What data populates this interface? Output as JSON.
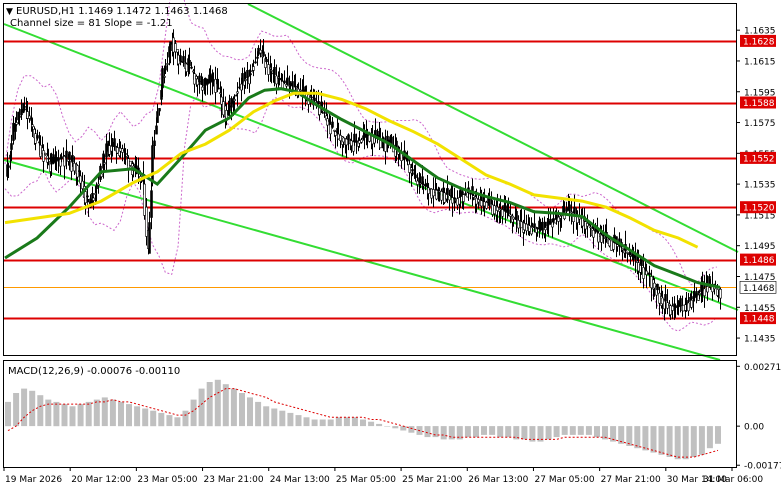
{
  "header": {
    "symbol_line": "EURUSD,H1  1.1469 1.1472 1.1463 1.1468",
    "channel_info": "Channel size = 81 Slope = -1.21"
  },
  "colors": {
    "bull_body": "#000000",
    "bear_body": "#ffffff",
    "candle_line": "#000000",
    "ma_fast": "#1a7a1a",
    "ma_slow": "#f2e200",
    "channel": "#33dd33",
    "level_line": "#dd0000",
    "level_label_bg": "#dd0000",
    "level_label_text": "#ffffff",
    "bollinger": "#cc66cc",
    "current_price_line": "#ff9900",
    "current_label_bg": "#ffffff",
    "macd_hist": "#c0c0c0",
    "macd_signal": "#dd0000",
    "grid_border": "#000000"
  },
  "chart_data": [
    {
      "type": "candlestick",
      "title": "EURUSD,H1",
      "ylim": [
        1.1424,
        1.1652
      ],
      "y_ticks": [
        "1.1635",
        "1.1615",
        "1.1595",
        "1.1575",
        "1.1555",
        "1.1535",
        "1.1515",
        "1.1495",
        "1.1475",
        "1.1455",
        "1.1435"
      ],
      "y_tick_values": [
        1.1635,
        1.1615,
        1.1595,
        1.1575,
        1.1555,
        1.1535,
        1.1515,
        1.1495,
        1.1475,
        1.1455,
        1.1435
      ],
      "x_labels": [
        "19 Mar 2026",
        "20 Mar 12:00",
        "23 Mar 05:00",
        "23 Mar 21:00",
        "24 Mar 13:00",
        "25 Mar 05:00",
        "25 Mar 21:00",
        "26 Mar 13:00",
        "27 Mar 05:00",
        "27 Mar 21:00",
        "30 Mar 14:00",
        "31 Mar 06:00"
      ],
      "levels": [
        {
          "label": "1.1628",
          "value": 1.1628
        },
        {
          "label": "1.1588",
          "value": 1.1588
        },
        {
          "label": "1.1552",
          "value": 1.1552
        },
        {
          "label": "1.1520",
          "value": 1.152
        },
        {
          "label": "1.1486",
          "value": 1.1486
        },
        {
          "label": "1.1448",
          "value": 1.1448
        }
      ],
      "current_price": {
        "label": "1.1468",
        "value": 1.1468
      },
      "close_path": [
        [
          0,
          1.154
        ],
        [
          6,
          1.1575
        ],
        [
          12,
          1.1585
        ],
        [
          20,
          1.1562
        ],
        [
          28,
          1.1548
        ],
        [
          36,
          1.1553
        ],
        [
          44,
          1.1547
        ],
        [
          52,
          1.152
        ],
        [
          58,
          1.1538
        ],
        [
          64,
          1.156
        ],
        [
          72,
          1.1558
        ],
        [
          80,
          1.1545
        ],
        [
          86,
          1.1535
        ],
        [
          89,
          1.149
        ],
        [
          92,
          1.156
        ],
        [
          98,
          1.1605
        ],
        [
          104,
          1.163
        ],
        [
          108,
          1.1615
        ],
        [
          114,
          1.1612
        ],
        [
          122,
          1.1598
        ],
        [
          130,
          1.1603
        ],
        [
          138,
          1.158
        ],
        [
          146,
          1.16
        ],
        [
          152,
          1.1606
        ],
        [
          158,
          1.1622
        ],
        [
          166,
          1.1607
        ],
        [
          174,
          1.16
        ],
        [
          180,
          1.1598
        ],
        [
          188,
          1.1593
        ],
        [
          196,
          1.1585
        ],
        [
          204,
          1.157
        ],
        [
          210,
          1.1565
        ],
        [
          218,
          1.1562
        ],
        [
          226,
          1.1567
        ],
        [
          234,
          1.1563
        ],
        [
          242,
          1.156
        ],
        [
          250,
          1.155
        ],
        [
          256,
          1.1537
        ],
        [
          264,
          1.1532
        ],
        [
          272,
          1.153
        ],
        [
          280,
          1.1525
        ],
        [
          288,
          1.153
        ],
        [
          294,
          1.1525
        ],
        [
          302,
          1.1522
        ],
        [
          310,
          1.1518
        ],
        [
          318,
          1.1512
        ],
        [
          326,
          1.1508
        ],
        [
          334,
          1.1505
        ],
        [
          342,
          1.1512
        ],
        [
          350,
          1.1518
        ],
        [
          358,
          1.1514
        ],
        [
          366,
          1.1505
        ],
        [
          374,
          1.15
        ],
        [
          382,
          1.1495
        ],
        [
          390,
          1.1488
        ],
        [
          396,
          1.1482
        ],
        [
          402,
          1.1475
        ],
        [
          408,
          1.1462
        ],
        [
          414,
          1.1456
        ],
        [
          418,
          1.1455
        ],
        [
          424,
          1.1457
        ],
        [
          430,
          1.1462
        ],
        [
          436,
          1.1468
        ],
        [
          440,
          1.147
        ],
        [
          446,
          1.1466
        ]
      ],
      "series": [
        {
          "name": "MA fast",
          "points": [
            [
              0,
              1.1487
            ],
            [
              20,
              1.15
            ],
            [
              40,
              1.152
            ],
            [
              60,
              1.1543
            ],
            [
              80,
              1.1545
            ],
            [
              95,
              1.1535
            ],
            [
              110,
              1.1552
            ],
            [
              125,
              1.157
            ],
            [
              140,
              1.1578
            ],
            [
              152,
              1.1591
            ],
            [
              162,
              1.1596
            ],
            [
              172,
              1.1597
            ],
            [
              182,
              1.1595
            ],
            [
              195,
              1.1586
            ],
            [
              210,
              1.1577
            ],
            [
              225,
              1.1569
            ],
            [
              240,
              1.1561
            ],
            [
              255,
              1.155
            ],
            [
              270,
              1.1539
            ],
            [
              285,
              1.1532
            ],
            [
              300,
              1.1527
            ],
            [
              315,
              1.1523
            ],
            [
              330,
              1.1517
            ],
            [
              345,
              1.1516
            ],
            [
              360,
              1.1514
            ],
            [
              375,
              1.1502
            ],
            [
              390,
              1.1492
            ],
            [
              405,
              1.1482
            ],
            [
              420,
              1.1476
            ],
            [
              432,
              1.1471
            ],
            [
              446,
              1.1468
            ]
          ]
        },
        {
          "name": "MA slow",
          "points": [
            [
              0,
              1.151
            ],
            [
              20,
              1.1513
            ],
            [
              40,
              1.1516
            ],
            [
              60,
              1.1524
            ],
            [
              80,
              1.1536
            ],
            [
              95,
              1.1543
            ],
            [
              110,
              1.1555
            ],
            [
              125,
              1.1561
            ],
            [
              140,
              1.157
            ],
            [
              155,
              1.1582
            ],
            [
              168,
              1.1589
            ],
            [
              180,
              1.1594
            ],
            [
              195,
              1.1594
            ],
            [
              210,
              1.159
            ],
            [
              225,
              1.1584
            ],
            [
              240,
              1.1576
            ],
            [
              255,
              1.1569
            ],
            [
              270,
              1.1561
            ],
            [
              285,
              1.1551
            ],
            [
              300,
              1.1541
            ],
            [
              315,
              1.1535
            ],
            [
              330,
              1.1528
            ],
            [
              345,
              1.1526
            ],
            [
              360,
              1.1524
            ],
            [
              375,
              1.152
            ],
            [
              390,
              1.1513
            ],
            [
              405,
              1.1505
            ],
            [
              420,
              1.15
            ],
            [
              432,
              1.1494
            ]
          ]
        }
      ]
    },
    {
      "type": "bar",
      "title": "MACD(12,26,9) -0.00076 -0.00110",
      "ylim": [
        -0.00185,
        0.00295
      ],
      "y_ticks": [
        "0.00271",
        "0.00",
        "-0.00177"
      ],
      "y_tick_values": [
        0.00271,
        0.0,
        -0.00177
      ],
      "series": [
        {
          "name": "MACD",
          "values": [
            0.0011,
            0.0015,
            0.0017,
            0.0016,
            0.0014,
            0.0012,
            0.0011,
            0.001,
            0.0009,
            0.001,
            0.0011,
            0.0012,
            0.0013,
            0.0012,
            0.0011,
            0.001,
            0.0009,
            0.0008,
            0.0007,
            0.0006,
            0.0005,
            0.0004,
            0.0007,
            0.0012,
            0.0017,
            0.002,
            0.0021,
            0.0019,
            0.0017,
            0.0015,
            0.0013,
            0.0011,
            0.0009,
            0.0008,
            0.0007,
            0.0006,
            0.0005,
            0.0004,
            0.0003,
            0.0003,
            0.0003,
            0.0004,
            0.0004,
            0.0004,
            0.0003,
            0.0002,
            0.0001,
            0.0,
            -0.0001,
            -0.0002,
            -0.0003,
            -0.0004,
            -0.0005,
            -0.0005,
            -0.0006,
            -0.0006,
            -0.0006,
            -0.0005,
            -0.0005,
            -0.0004,
            -0.0004,
            -0.0005,
            -0.0005,
            -0.0006,
            -0.0006,
            -0.0007,
            -0.0007,
            -0.0006,
            -0.0005,
            -0.0004,
            -0.0004,
            -0.0004,
            -0.0004,
            -0.0005,
            -0.0006,
            -0.0007,
            -0.0008,
            -0.0009,
            -0.001,
            -0.0011,
            -0.0012,
            -0.0013,
            -0.0014,
            -0.0015,
            -0.0015,
            -0.0014,
            -0.0013,
            -0.001,
            -0.0008
          ]
        },
        {
          "name": "Signal",
          "values": [
            -0.0002,
            0.0,
            0.0004,
            0.0007,
            0.0009,
            0.001,
            0.001,
            0.001,
            0.001,
            0.001,
            0.001,
            0.0011,
            0.0011,
            0.0012,
            0.0011,
            0.0011,
            0.001,
            0.0009,
            0.0008,
            0.0007,
            0.0006,
            0.0005,
            0.0005,
            0.0007,
            0.001,
            0.0013,
            0.0015,
            0.0017,
            0.0017,
            0.0016,
            0.0015,
            0.0014,
            0.0013,
            0.0011,
            0.001,
            0.0009,
            0.0008,
            0.0007,
            0.0006,
            0.0005,
            0.0004,
            0.0004,
            0.0004,
            0.0004,
            0.0004,
            0.0003,
            0.0003,
            0.0002,
            0.0001,
            0.0,
            -0.0001,
            -0.0002,
            -0.0003,
            -0.0004,
            -0.0004,
            -0.0005,
            -0.0005,
            -0.0005,
            -0.0005,
            -0.0005,
            -0.0005,
            -0.0005,
            -0.0005,
            -0.0005,
            -0.0006,
            -0.0006,
            -0.0006,
            -0.0006,
            -0.0006,
            -0.0005,
            -0.0005,
            -0.0005,
            -0.0005,
            -0.0005,
            -0.0005,
            -0.0006,
            -0.0007,
            -0.0008,
            -0.0009,
            -0.001,
            -0.0011,
            -0.0012,
            -0.0013,
            -0.0014,
            -0.0014,
            -0.0014,
            -0.0013,
            -0.0012,
            -0.0011
          ]
        }
      ]
    }
  ]
}
